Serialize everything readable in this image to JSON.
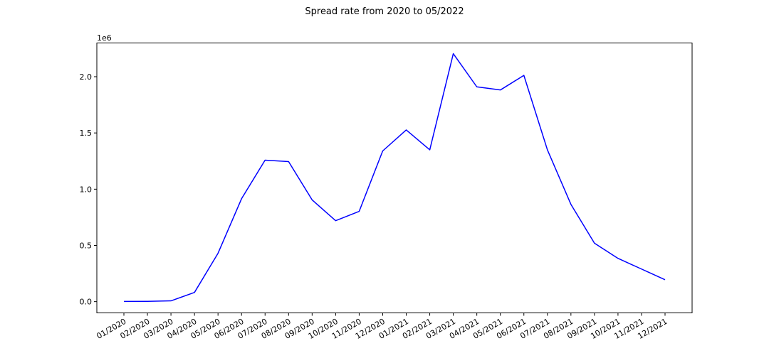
{
  "chart_data": {
    "type": "line",
    "title": "Spread rate from 2020 to 05/2022",
    "xlabel": "",
    "ylabel": "",
    "y_offset_label": "1e6",
    "y_scale_factor": 1000000,
    "ylim": [
      -100000,
      2300000
    ],
    "y_ticks": [
      0,
      500000,
      1000000,
      1500000,
      2000000
    ],
    "y_tick_labels": [
      "0.0",
      "0.5",
      "1.0",
      "1.5",
      "2.0"
    ],
    "x_tick_rotation_deg": 30,
    "grid": false,
    "legend": "none",
    "categories": [
      "01/2020",
      "02/2020",
      "03/2020",
      "04/2020",
      "05/2020",
      "06/2020",
      "07/2020",
      "08/2020",
      "09/2020",
      "10/2020",
      "11/2020",
      "12/2020",
      "01/2021",
      "02/2021",
      "03/2021",
      "04/2021",
      "05/2021",
      "06/2021",
      "07/2021",
      "08/2021",
      "09/2021",
      "10/2021",
      "11/2021",
      "12/2021"
    ],
    "series": [
      {
        "color": "#0000ff",
        "values": [
          2000,
          2500,
          7000,
          82000,
          430000,
          915000,
          1258000,
          1245000,
          905000,
          720000,
          803000,
          1340000,
          1527000,
          1350000,
          2205000,
          1910000,
          1882000,
          2012000,
          1350000,
          865000,
          520000,
          385000,
          290000,
          195000
        ]
      }
    ],
    "colors": {
      "axes": "#000000",
      "background": "#ffffff"
    }
  }
}
